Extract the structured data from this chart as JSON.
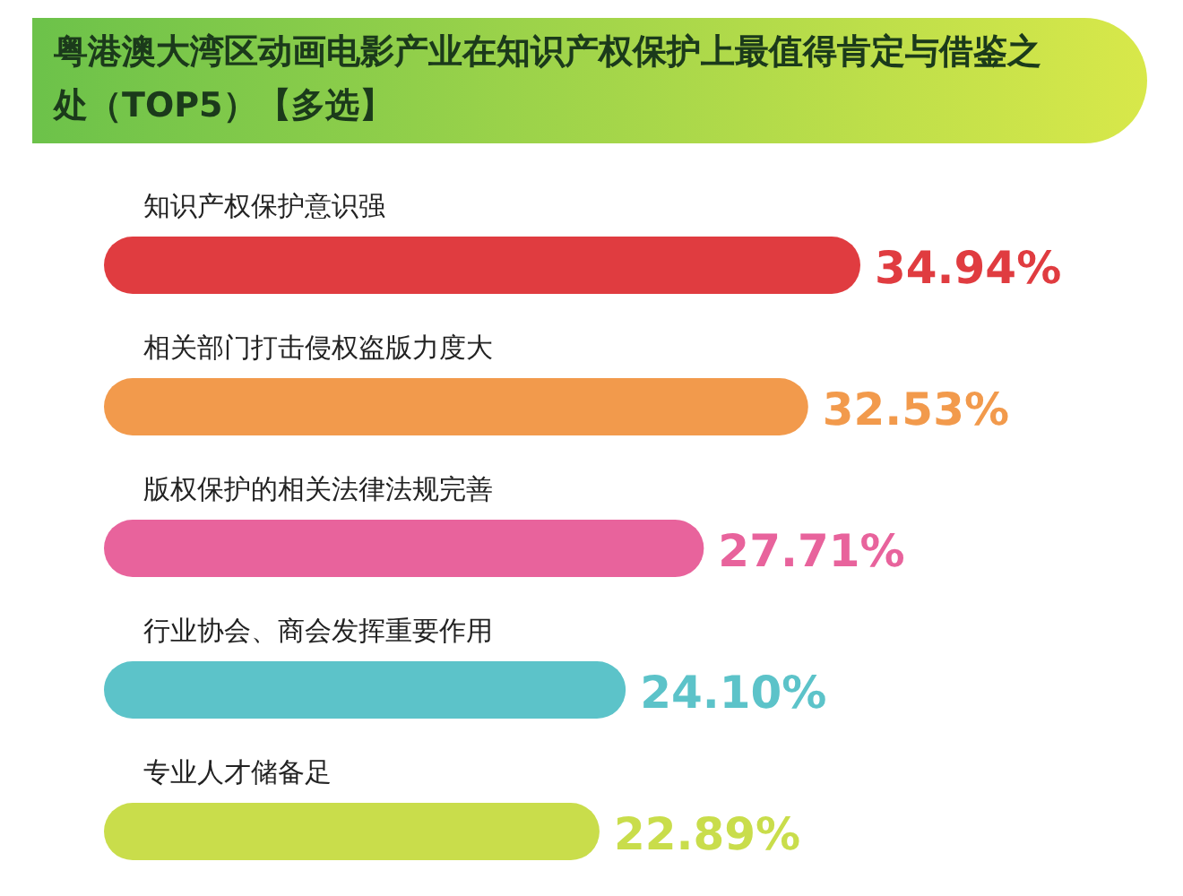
{
  "chart_data": {
    "type": "bar",
    "orientation": "horizontal",
    "title": "粤港澳大湾区动画电影产业在知识产权保护上最值得肯定与借鉴之处（TOP5）【多选】",
    "categories": [
      "知识产权保护意识强",
      "相关部门打击侵权盗版力度大",
      "版权保护的相关法律法规完善",
      "行业协会、商会发挥重要作用",
      "专业人才储备足"
    ],
    "values": [
      34.94,
      32.53,
      27.71,
      24.1,
      22.89
    ],
    "value_labels": [
      "34.94%",
      "32.53%",
      "27.71%",
      "24.10%",
      "22.89%"
    ],
    "colors": [
      "#e03c40",
      "#f29a4c",
      "#e8639c",
      "#5cc3c9",
      "#c9dd4b"
    ]
  }
}
